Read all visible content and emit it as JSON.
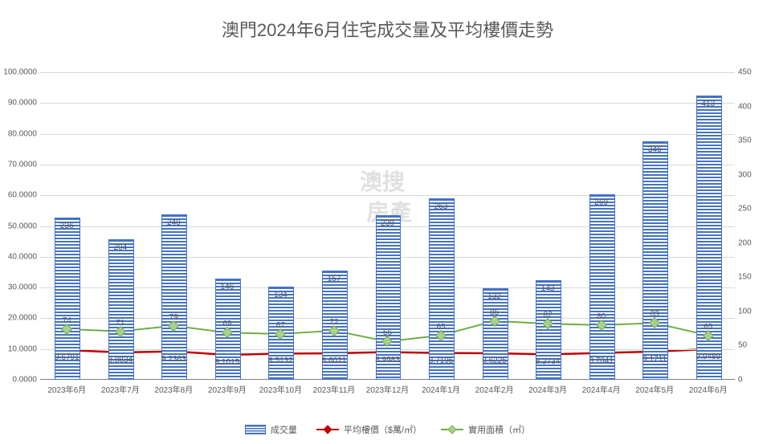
{
  "title": "澳門2024年6月住宅成交量及平均樓價走勢",
  "watermark": "澳搜\n房產",
  "categories": [
    "2023年6月",
    "2023年7月",
    "2023年8月",
    "2023年9月",
    "2023年10月",
    "2023年11月",
    "2023年12月",
    "2024年1月",
    "2024年2月",
    "2024年3月",
    "2024年4月",
    "2024年5月",
    "2024年6月"
  ],
  "series": {
    "transactions": {
      "label": "成交量",
      "type": "bar",
      "color_fill": "#4472c4",
      "values": [
        52.3,
        45.3,
        53.3,
        32.4,
        29.8,
        34.9,
        53.1,
        58.5,
        29.3,
        31.8,
        59.8,
        76.9,
        91.8
      ],
      "bar_labels": [
        "236",
        "204",
        "240",
        "146",
        "134",
        "157",
        "239",
        "263",
        "132",
        "143",
        "269",
        "346",
        "413"
      ]
    },
    "avg_price": {
      "label": "平均樓價（$萬/㎡）",
      "type": "line",
      "color": "#c00000",
      "marker": "diamond",
      "values": [
        9.6791,
        8.8834,
        9.2363,
        8.1015,
        8.5132,
        8.6021,
        8.9983,
        8.7195,
        8.6225,
        8.2734,
        8.7041,
        9.1711,
        9.9489
      ]
    },
    "usable_area": {
      "label": "實用面積（㎡）",
      "type": "line",
      "color": "#70ad47",
      "marker_fill": "#a9d08e",
      "marker": "diamond",
      "values": [
        74,
        71,
        79,
        69,
        67,
        72,
        56,
        65,
        86,
        82,
        80,
        83,
        65
      ],
      "value_labels": [
        "74",
        "71",
        "79",
        "69",
        "67",
        "72",
        "56",
        "65",
        "86",
        "82",
        "80",
        "83",
        "65"
      ]
    }
  },
  "left_axis": {
    "min": 0.0,
    "max": 100.0,
    "step": 10.0,
    "tick_format": ".0000"
  },
  "right_axis": {
    "min": 0,
    "max": 450,
    "step": 50
  },
  "legend_items": [
    {
      "key": "transactions",
      "label": "成交量"
    },
    {
      "key": "avg_price",
      "label": "平均樓價（$萬/㎡）"
    },
    {
      "key": "usable_area",
      "label": "實用面積（㎡）"
    }
  ],
  "style": {
    "grid_color": "#d9d9d9",
    "axis_line_color": "#808080",
    "text_color": "#595959",
    "background_color": "#ffffff",
    "title_fontsize": 22,
    "tick_fontsize": 10
  }
}
